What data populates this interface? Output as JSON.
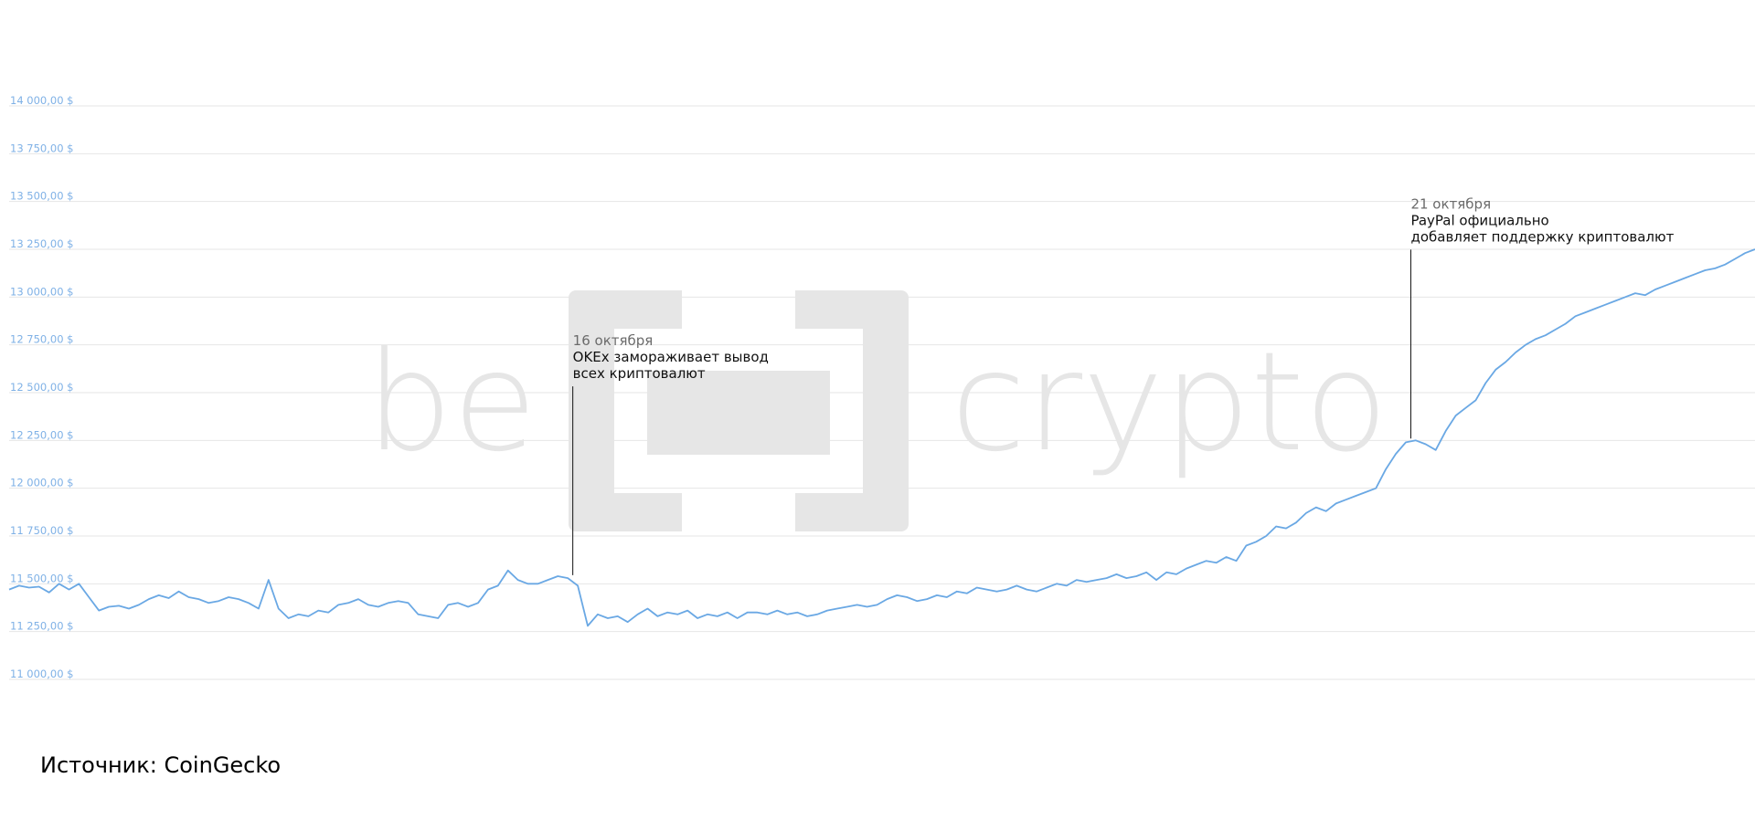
{
  "colors": {
    "line": "#6aa8e4",
    "tick_text": "#7fb1e6",
    "grid": "#e6e6e6",
    "annotation_date": "#6b6b6b",
    "annotation_text": "#111111",
    "watermark": "#e6e6e6"
  },
  "watermark": {
    "text_left": "be",
    "text_right": "crypto",
    "logo": "beincrypto"
  },
  "source": "Источник: CoinGecko",
  "chart_data": {
    "type": "line",
    "title": "",
    "xlabel": "",
    "ylabel": "",
    "grid": true,
    "legend": "none",
    "ylim": [
      11000,
      14000
    ],
    "xlim": [
      0,
      350
    ],
    "y_ticks": [
      11000,
      11250,
      11500,
      11750,
      12000,
      12250,
      12500,
      12750,
      13000,
      13250,
      13500,
      13750,
      14000
    ],
    "y_tick_labels": [
      "11 000,00 $",
      "11 250,00 $",
      "11 500,00 $",
      "11 750,00 $",
      "12 000,00 $",
      "12 250,00 $",
      "12 500,00 $",
      "12 750,00 $",
      "13 000,00 $",
      "13 250,00 $",
      "13 500,00 $",
      "13 750,00 $",
      "14 000,00 $"
    ],
    "series": [
      {
        "points": [
          [
            0,
            11470
          ],
          [
            2,
            11490
          ],
          [
            4,
            11480
          ],
          [
            6,
            11485
          ],
          [
            8,
            11455
          ],
          [
            10,
            11500
          ],
          [
            12,
            11470
          ],
          [
            14,
            11500
          ],
          [
            16,
            11430
          ],
          [
            18,
            11360
          ],
          [
            20,
            11380
          ],
          [
            22,
            11385
          ],
          [
            24,
            11370
          ],
          [
            26,
            11390
          ],
          [
            28,
            11420
          ],
          [
            30,
            11440
          ],
          [
            32,
            11425
          ],
          [
            34,
            11460
          ],
          [
            36,
            11430
          ],
          [
            38,
            11420
          ],
          [
            40,
            11400
          ],
          [
            42,
            11410
          ],
          [
            44,
            11430
          ],
          [
            46,
            11420
          ],
          [
            48,
            11400
          ],
          [
            50,
            11370
          ],
          [
            52,
            11520
          ],
          [
            54,
            11370
          ],
          [
            56,
            11320
          ],
          [
            58,
            11340
          ],
          [
            60,
            11330
          ],
          [
            62,
            11360
          ],
          [
            64,
            11350
          ],
          [
            66,
            11390
          ],
          [
            68,
            11400
          ],
          [
            70,
            11420
          ],
          [
            72,
            11390
          ],
          [
            74,
            11380
          ],
          [
            76,
            11400
          ],
          [
            78,
            11410
          ],
          [
            80,
            11400
          ],
          [
            82,
            11340
          ],
          [
            84,
            11330
          ],
          [
            86,
            11320
          ],
          [
            88,
            11390
          ],
          [
            90,
            11400
          ],
          [
            92,
            11380
          ],
          [
            94,
            11400
          ],
          [
            96,
            11470
          ],
          [
            98,
            11490
          ],
          [
            100,
            11570
          ],
          [
            102,
            11520
          ],
          [
            104,
            11500
          ],
          [
            106,
            11500
          ],
          [
            108,
            11520
          ],
          [
            110,
            11540
          ],
          [
            112,
            11530
          ],
          [
            114,
            11490
          ],
          [
            116,
            11280
          ],
          [
            118,
            11340
          ],
          [
            120,
            11320
          ],
          [
            122,
            11330
          ],
          [
            124,
            11300
          ],
          [
            126,
            11340
          ],
          [
            128,
            11370
          ],
          [
            130,
            11330
          ],
          [
            132,
            11350
          ],
          [
            134,
            11340
          ],
          [
            136,
            11360
          ],
          [
            138,
            11320
          ],
          [
            140,
            11340
          ],
          [
            142,
            11330
          ],
          [
            144,
            11350
          ],
          [
            146,
            11320
          ],
          [
            148,
            11350
          ],
          [
            150,
            11350
          ],
          [
            152,
            11340
          ],
          [
            154,
            11360
          ],
          [
            156,
            11340
          ],
          [
            158,
            11350
          ],
          [
            160,
            11330
          ],
          [
            162,
            11340
          ],
          [
            164,
            11360
          ],
          [
            166,
            11370
          ],
          [
            168,
            11380
          ],
          [
            170,
            11390
          ],
          [
            172,
            11380
          ],
          [
            174,
            11390
          ],
          [
            176,
            11420
          ],
          [
            178,
            11440
          ],
          [
            180,
            11430
          ],
          [
            182,
            11410
          ],
          [
            184,
            11420
          ],
          [
            186,
            11440
          ],
          [
            188,
            11430
          ],
          [
            190,
            11460
          ],
          [
            192,
            11450
          ],
          [
            194,
            11480
          ],
          [
            196,
            11470
          ],
          [
            198,
            11460
          ],
          [
            200,
            11470
          ],
          [
            202,
            11490
          ],
          [
            204,
            11470
          ],
          [
            206,
            11460
          ],
          [
            208,
            11480
          ],
          [
            210,
            11500
          ],
          [
            212,
            11490
          ],
          [
            214,
            11520
          ],
          [
            216,
            11510
          ],
          [
            218,
            11520
          ],
          [
            220,
            11530
          ],
          [
            222,
            11550
          ],
          [
            224,
            11530
          ],
          [
            226,
            11540
          ],
          [
            228,
            11560
          ],
          [
            230,
            11520
          ],
          [
            232,
            11560
          ],
          [
            234,
            11550
          ],
          [
            236,
            11580
          ],
          [
            238,
            11600
          ],
          [
            240,
            11620
          ],
          [
            242,
            11610
          ],
          [
            244,
            11640
          ],
          [
            246,
            11620
          ],
          [
            248,
            11700
          ],
          [
            250,
            11720
          ],
          [
            252,
            11750
          ],
          [
            254,
            11800
          ],
          [
            256,
            11790
          ],
          [
            258,
            11820
          ],
          [
            260,
            11870
          ],
          [
            262,
            11900
          ],
          [
            264,
            11880
          ],
          [
            266,
            11920
          ],
          [
            268,
            11940
          ],
          [
            270,
            11960
          ],
          [
            272,
            11980
          ],
          [
            274,
            12000
          ],
          [
            276,
            12100
          ],
          [
            278,
            12180
          ],
          [
            280,
            12240
          ],
          [
            282,
            12250
          ],
          [
            284,
            12230
          ],
          [
            286,
            12200
          ],
          [
            288,
            12300
          ],
          [
            290,
            12380
          ],
          [
            292,
            12420
          ],
          [
            294,
            12460
          ],
          [
            296,
            12550
          ],
          [
            298,
            12620
          ],
          [
            300,
            12660
          ],
          [
            302,
            12710
          ],
          [
            304,
            12750
          ],
          [
            306,
            12780
          ],
          [
            308,
            12800
          ],
          [
            310,
            12830
          ],
          [
            312,
            12860
          ],
          [
            314,
            12900
          ],
          [
            316,
            12920
          ],
          [
            318,
            12940
          ],
          [
            320,
            12960
          ],
          [
            322,
            12980
          ],
          [
            324,
            13000
          ],
          [
            326,
            13020
          ],
          [
            328,
            13010
          ],
          [
            330,
            13040
          ],
          [
            332,
            13060
          ],
          [
            334,
            13080
          ],
          [
            336,
            13100
          ],
          [
            338,
            13120
          ],
          [
            340,
            13140
          ],
          [
            342,
            13150
          ],
          [
            344,
            13170
          ],
          [
            346,
            13200
          ],
          [
            348,
            13230
          ],
          [
            350,
            13250
          ]
        ]
      }
    ],
    "annotations": [
      {
        "x": 113,
        "y": 11545,
        "label_top": 12810,
        "date": "16 октября",
        "lines": [
          "OKEx замораживает вывод",
          "всех криптовалют"
        ]
      },
      {
        "x": 281,
        "y": 12260,
        "label_top": 13525,
        "date": "21 октября",
        "lines": [
          "PayPal официально",
          "добавляет поддержку криптовалют"
        ]
      }
    ]
  }
}
